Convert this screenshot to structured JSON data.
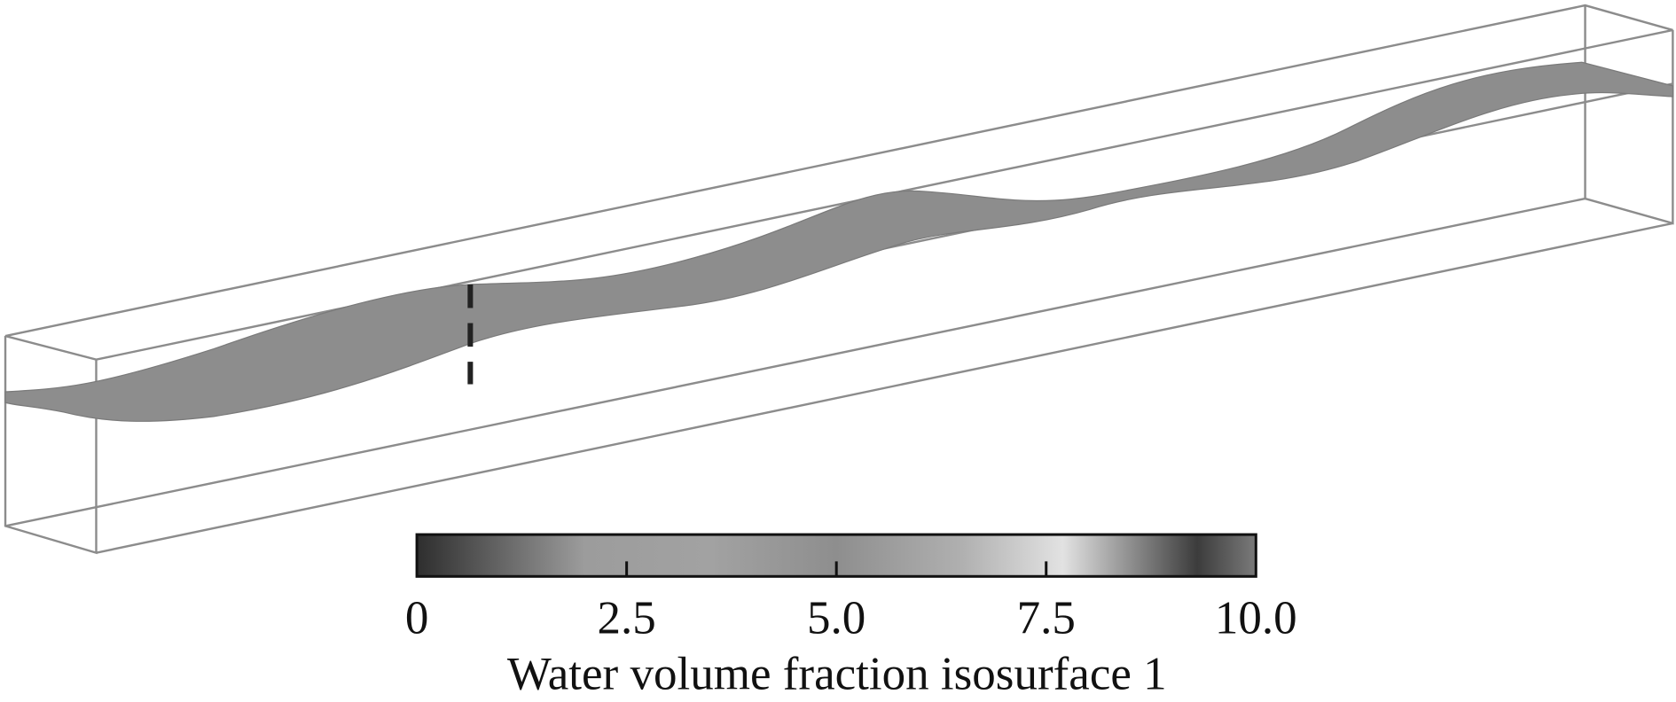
{
  "colorbar": {
    "title": "Water volume fraction isosurface 1",
    "lim": [
      0,
      10
    ],
    "ticks": [
      0,
      2.5,
      {
        "value": 5,
        "label": "5.0"
      },
      7.5,
      {
        "value": 10,
        "label": "10.0"
      }
    ]
  }
}
